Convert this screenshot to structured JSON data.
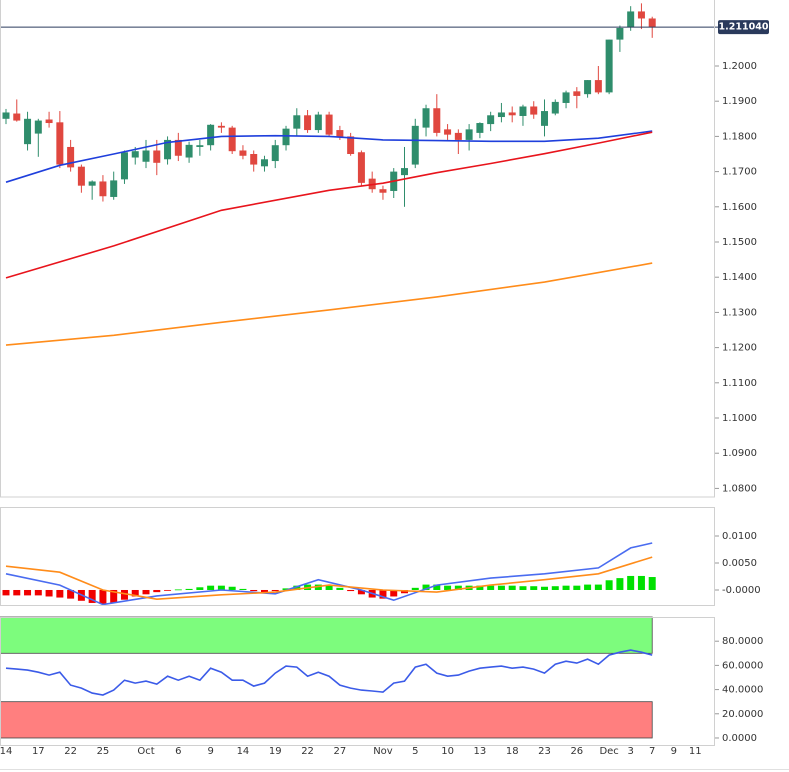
{
  "chart_data": [
    {
      "type": "candlestick",
      "xlim": [
        -0.557,
        65.83
      ],
      "xticks": [
        {
          "value": 0,
          "label": "14"
        },
        {
          "value": 3,
          "label": "17"
        },
        {
          "value": 6,
          "label": "22"
        },
        {
          "value": 9,
          "label": "25"
        },
        {
          "value": 13,
          "label": "Oct"
        },
        {
          "value": 16,
          "label": "6"
        },
        {
          "value": 19,
          "label": "9"
        },
        {
          "value": 22,
          "label": "14"
        },
        {
          "value": 25,
          "label": "19"
        },
        {
          "value": 28,
          "label": "22"
        },
        {
          "value": 31,
          "label": "27"
        },
        {
          "value": 35,
          "label": "Nov"
        },
        {
          "value": 38,
          "label": "5"
        },
        {
          "value": 41,
          "label": "10"
        },
        {
          "value": 44,
          "label": "13"
        },
        {
          "value": 47,
          "label": "18"
        },
        {
          "value": 50,
          "label": "23"
        },
        {
          "value": 53,
          "label": "26"
        },
        {
          "value": 56,
          "label": "Dec"
        },
        {
          "value": 58,
          "label": "3"
        },
        {
          "value": 60,
          "label": "7"
        },
        {
          "value": 62,
          "label": "9"
        },
        {
          "value": 64,
          "label": "11"
        }
      ],
      "ylim": [
        1.07756,
        1.21875
      ],
      "yticks": [
        {
          "value": 1.2,
          "label": "1.2000"
        },
        {
          "value": 1.19,
          "label": "1.1900"
        },
        {
          "value": 1.18,
          "label": "1.1800"
        },
        {
          "value": 1.17,
          "label": "1.1700"
        },
        {
          "value": 1.16,
          "label": "1.1600"
        },
        {
          "value": 1.15,
          "label": "1.1500"
        },
        {
          "value": 1.14,
          "label": "1.1400"
        },
        {
          "value": 1.13,
          "label": "1.1300"
        },
        {
          "value": 1.12,
          "label": "1.1200"
        },
        {
          "value": 1.11,
          "label": "1.1100"
        },
        {
          "value": 1.1,
          "label": "1.1000"
        },
        {
          "value": 1.09,
          "label": "1.0900"
        },
        {
          "value": 1.08,
          "label": "1.0800"
        }
      ],
      "grid": true,
      "last_price": {
        "value": 1.21104,
        "label": "1.211040"
      },
      "up_color": "#2f8d6c",
      "down_color": "#e0473f",
      "x": [
        0,
        1,
        2,
        3,
        4,
        5,
        6,
        7,
        8,
        9,
        10,
        11,
        12,
        13,
        14,
        15,
        16,
        17,
        18,
        19,
        20,
        21,
        22,
        23,
        24,
        25,
        26,
        27,
        28,
        29,
        30,
        31,
        32,
        33,
        34,
        35,
        36,
        37,
        38,
        39,
        40,
        41,
        42,
        43,
        44,
        45,
        46,
        47,
        48,
        49,
        50,
        51,
        52,
        53,
        54,
        55,
        56,
        57,
        58,
        59,
        60
      ],
      "open": [
        1.185,
        1.1865,
        1.1778,
        1.1808,
        1.1848,
        1.184,
        1.177,
        1.1714,
        1.166,
        1.1672,
        1.1628,
        1.1678,
        1.174,
        1.1728,
        1.176,
        1.1735,
        1.179,
        1.174,
        1.177,
        1.1775,
        1.183,
        1.1825,
        1.176,
        1.175,
        1.1715,
        1.173,
        1.1775,
        1.1822,
        1.186,
        1.1818,
        1.1862,
        1.1818,
        1.18,
        1.1755,
        1.168,
        1.165,
        1.1645,
        1.169,
        1.172,
        1.1825,
        1.188,
        1.182,
        1.181,
        1.179,
        1.181,
        1.1835,
        1.1855,
        1.1868,
        1.1858,
        1.1885,
        1.183,
        1.1865,
        1.1895,
        1.1928,
        1.192,
        1.196,
        1.1925,
        1.2075,
        1.211,
        1.2155,
        1.2135
      ],
      "high": [
        1.1878,
        1.1905,
        1.187,
        1.185,
        1.187,
        1.1872,
        1.179,
        1.172,
        1.1675,
        1.169,
        1.17,
        1.176,
        1.177,
        1.179,
        1.179,
        1.18,
        1.181,
        1.1785,
        1.179,
        1.1835,
        1.184,
        1.183,
        1.1775,
        1.176,
        1.1745,
        1.179,
        1.183,
        1.188,
        1.1875,
        1.187,
        1.187,
        1.183,
        1.181,
        1.176,
        1.17,
        1.166,
        1.171,
        1.177,
        1.185,
        1.189,
        1.192,
        1.1835,
        1.182,
        1.1835,
        1.184,
        1.187,
        1.1895,
        1.1885,
        1.189,
        1.19,
        1.1905,
        1.1905,
        1.193,
        1.194,
        1.196,
        1.2,
        1.2075,
        1.2115,
        1.217,
        1.2178,
        1.214
      ],
      "low": [
        1.1835,
        1.1842,
        1.176,
        1.1742,
        1.1825,
        1.171,
        1.17,
        1.164,
        1.162,
        1.1615,
        1.162,
        1.1665,
        1.172,
        1.171,
        1.169,
        1.172,
        1.173,
        1.1725,
        1.1745,
        1.176,
        1.181,
        1.175,
        1.1735,
        1.17,
        1.17,
        1.171,
        1.176,
        1.18,
        1.181,
        1.181,
        1.18,
        1.179,
        1.1745,
        1.166,
        1.164,
        1.162,
        1.1625,
        1.16,
        1.171,
        1.18,
        1.18,
        1.179,
        1.175,
        1.176,
        1.1795,
        1.1815,
        1.184,
        1.184,
        1.183,
        1.185,
        1.18,
        1.186,
        1.188,
        1.188,
        1.191,
        1.192,
        1.192,
        1.204,
        1.21,
        1.2105,
        1.208
      ],
      "close": [
        1.1868,
        1.1845,
        1.185,
        1.1845,
        1.1838,
        1.172,
        1.1712,
        1.166,
        1.1672,
        1.163,
        1.1675,
        1.1755,
        1.1758,
        1.176,
        1.1725,
        1.179,
        1.1745,
        1.1776,
        1.1775,
        1.1833,
        1.1825,
        1.1758,
        1.1745,
        1.172,
        1.1735,
        1.1775,
        1.1822,
        1.186,
        1.1818,
        1.1862,
        1.1805,
        1.1798,
        1.175,
        1.1668,
        1.165,
        1.164,
        1.17,
        1.171,
        1.183,
        1.188,
        1.181,
        1.1805,
        1.179,
        1.182,
        1.1838,
        1.186,
        1.1868,
        1.186,
        1.1885,
        1.1862,
        1.1872,
        1.1898,
        1.1925,
        1.1915,
        1.196,
        1.1925,
        1.2075,
        1.2108,
        1.2155,
        1.2135,
        1.2111
      ],
      "series": [
        {
          "color": "#1f3fdc",
          "x": [
            0,
            5,
            10,
            15,
            20,
            25,
            30,
            35,
            40,
            45,
            50,
            55,
            60
          ],
          "values": [
            1.167,
            1.1718,
            1.175,
            1.1783,
            1.18,
            1.1802,
            1.18,
            1.179,
            1.1788,
            1.1786,
            1.1786,
            1.1795,
            1.1815
          ]
        },
        {
          "color": "#e8141c",
          "x": [
            0,
            10,
            20,
            30,
            35,
            40,
            45,
            50,
            55,
            60
          ],
          "values": [
            1.1398,
            1.1489,
            1.159,
            1.1647,
            1.1667,
            1.1697,
            1.1723,
            1.1751,
            1.1781,
            1.1812
          ]
        },
        {
          "color": "#ff8c1a",
          "x": [
            0,
            10,
            20,
            30,
            40,
            50,
            60
          ],
          "values": [
            1.1207,
            1.1235,
            1.1272,
            1.1307,
            1.1344,
            1.1386,
            1.144
          ]
        }
      ]
    },
    {
      "type": "macd",
      "ylim": [
        -0.00278,
        0.01537
      ],
      "yticks": [
        {
          "value": 0.01,
          "label": "0.0100"
        },
        {
          "value": 0.005,
          "label": "0.0050"
        },
        {
          "value": 0,
          "label": "-0.0000"
        }
      ],
      "pos_color": "#00e000",
      "neg_color": "#f00000",
      "x": [
        0,
        1,
        2,
        3,
        4,
        5,
        6,
        7,
        8,
        9,
        10,
        11,
        12,
        13,
        14,
        15,
        16,
        17,
        18,
        19,
        20,
        21,
        22,
        23,
        24,
        25,
        26,
        27,
        28,
        29,
        30,
        31,
        32,
        33,
        34,
        35,
        36,
        37,
        38,
        39,
        40,
        41,
        42,
        43,
        44,
        45,
        46,
        47,
        48,
        49,
        50,
        51,
        52,
        53,
        54,
        55,
        56,
        57,
        58,
        59,
        60
      ],
      "values": [
        -0.001,
        -0.001,
        -0.001,
        -0.001,
        -0.0012,
        -0.0014,
        -0.0016,
        -0.002,
        -0.0024,
        -0.0026,
        -0.0024,
        -0.0018,
        -0.0012,
        -0.0008,
        -0.0004,
        -0.0001,
        0.0001,
        0.0002,
        0.0005,
        0.0008,
        0.0008,
        0.0006,
        0.0002,
        -0.0002,
        -0.0004,
        -0.0002,
        0.0003,
        0.0008,
        0.001,
        0.001,
        0.0008,
        0.0004,
        -0.0002,
        -0.0008,
        -0.0014,
        -0.0016,
        -0.0012,
        -0.0006,
        0.0004,
        0.001,
        0.001,
        0.0008,
        0.0008,
        0.0008,
        0.0008,
        0.0008,
        0.0008,
        0.0008,
        0.0007,
        0.0007,
        0.0006,
        0.0007,
        0.0008,
        0.0008,
        0.001,
        0.001,
        0.0018,
        0.0022,
        0.0026,
        0.0026,
        0.0024
      ],
      "series": [
        {
          "color": "#4a6cf0",
          "x": [
            0,
            5,
            9,
            14,
            20,
            25,
            29,
            33,
            36,
            40,
            45,
            50,
            55,
            58,
            60
          ],
          "values": [
            0.003,
            0.0009,
            -0.0027,
            -0.0011,
            0.0,
            -0.0007,
            0.0019,
            0.0,
            -0.0019,
            0.0009,
            0.0022,
            0.003,
            0.0041,
            0.0078,
            0.0087
          ]
        },
        {
          "color": "#ff8c1a",
          "x": [
            0,
            5,
            9,
            14,
            20,
            25,
            30,
            35,
            40,
            45,
            50,
            55,
            60
          ],
          "values": [
            0.0044,
            0.0033,
            0.0,
            -0.0017,
            -0.0009,
            -0.0004,
            0.0009,
            0.0,
            -0.0004,
            0.0009,
            0.0019,
            0.003,
            0.0061
          ]
        }
      ]
    },
    {
      "type": "line",
      "ylim": [
        -5.8,
        100
      ],
      "yticks": [
        {
          "value": 80,
          "label": "80.0000"
        },
        {
          "value": 60,
          "label": "60.0000"
        },
        {
          "value": 40,
          "label": "40.0000"
        },
        {
          "value": 20,
          "label": "20.0000"
        },
        {
          "value": 0,
          "label": "0.0000"
        }
      ],
      "overbought": 70,
      "oversold": 30,
      "overbought_color": "#7dfc7d",
      "oversold_color": "#ff7f7f",
      "series": [
        {
          "color": "#3b5be8",
          "x": [
            0,
            1,
            2,
            3,
            4,
            5,
            6,
            7,
            8,
            9,
            10,
            11,
            12,
            13,
            14,
            15,
            16,
            17,
            18,
            19,
            20,
            21,
            22,
            23,
            24,
            25,
            26,
            27,
            28,
            29,
            30,
            31,
            32,
            33,
            34,
            35,
            36,
            37,
            38,
            39,
            40,
            41,
            42,
            43,
            44,
            45,
            46,
            47,
            48,
            49,
            50,
            51,
            52,
            53,
            54,
            55,
            56,
            57,
            58,
            59,
            60
          ],
          "values": [
            57.7,
            56.9,
            56.1,
            54.4,
            52.0,
            54.4,
            43.7,
            41.2,
            37.1,
            35.5,
            39.6,
            47.8,
            45.4,
            47.0,
            44.5,
            51.1,
            47.8,
            51.1,
            47.8,
            57.7,
            54.4,
            47.8,
            47.8,
            42.9,
            45.4,
            53.6,
            59.4,
            58.6,
            51.1,
            54.4,
            51.1,
            43.7,
            41.2,
            39.6,
            38.8,
            37.9,
            45.4,
            47.0,
            58.6,
            61.0,
            53.6,
            51.1,
            52.0,
            55.3,
            57.7,
            58.6,
            59.4,
            57.7,
            58.6,
            56.9,
            53.6,
            61.0,
            63.5,
            61.9,
            65.2,
            61.0,
            68.5,
            70.9,
            72.6,
            70.9,
            68.5
          ]
        }
      ]
    }
  ]
}
